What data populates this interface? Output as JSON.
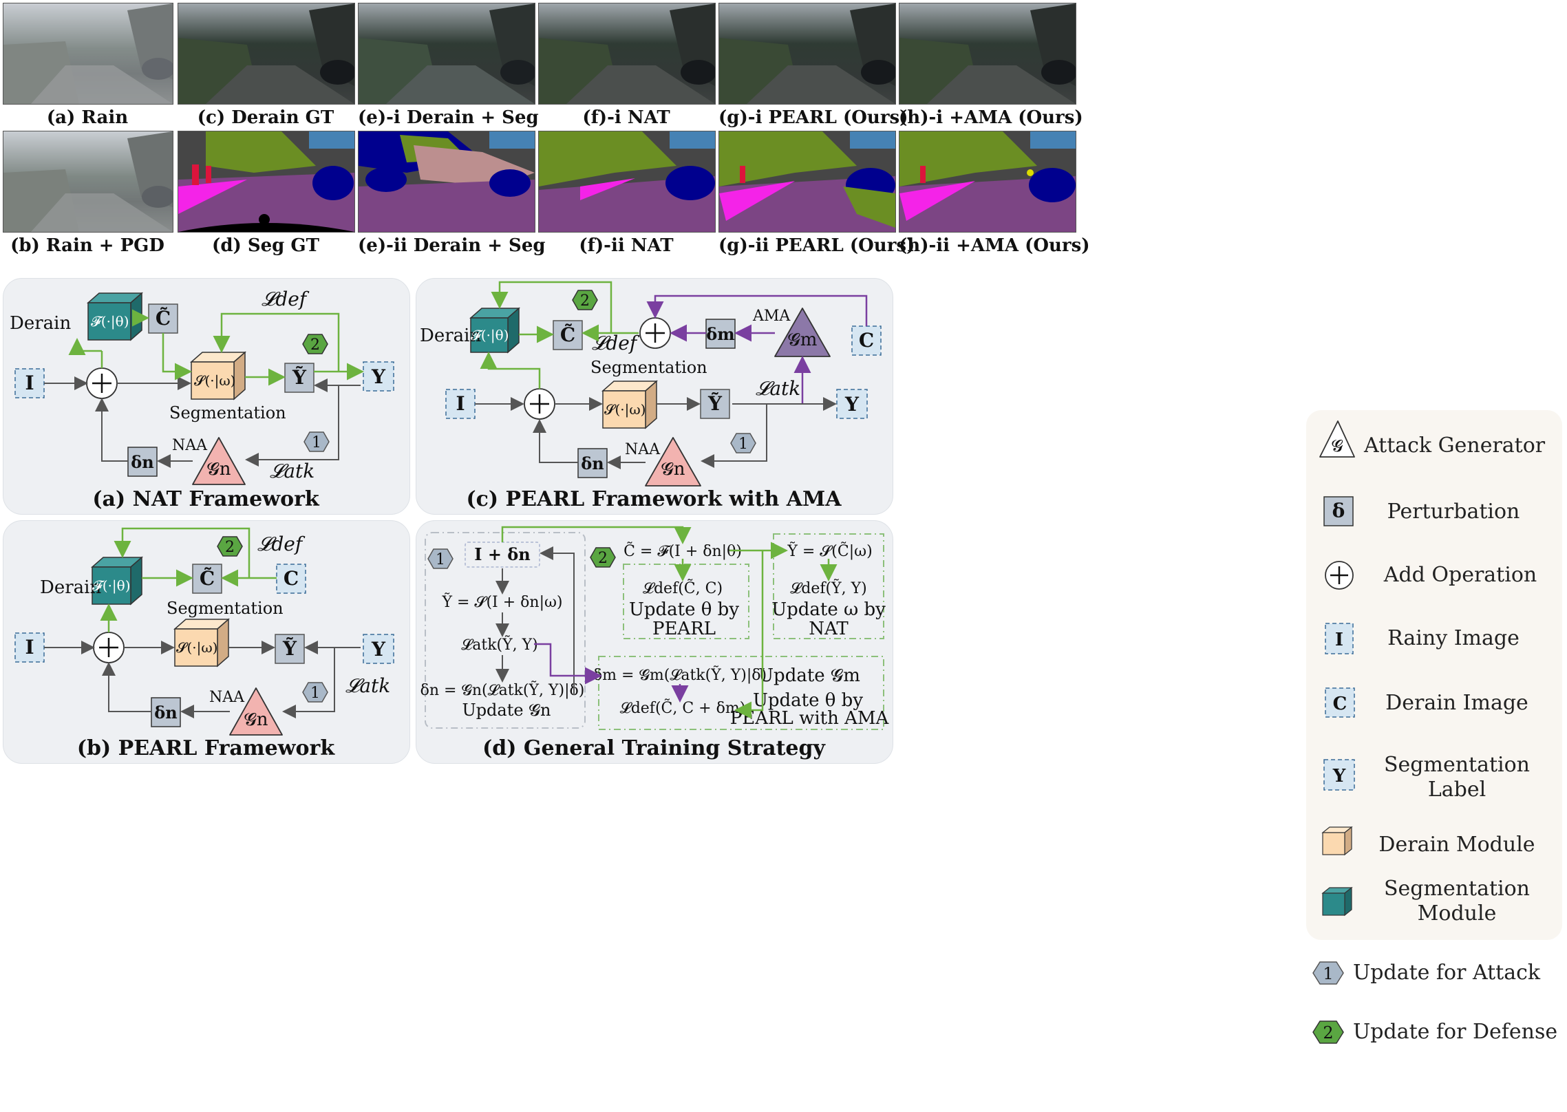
{
  "photo_captions": {
    "rain": "(a) Rain",
    "rain_pgd": "(b) Rain + PGD",
    "derain_gt": "(c) Derain GT",
    "seg_gt": "(d) Seg GT",
    "e_i": "(e)-i Derain + Seg",
    "e_ii": "(e)-ii Derain + Seg",
    "f_i": "(f)-i NAT",
    "f_ii": "(f)-ii NAT",
    "g_i": "(g)-i PEARL (Ours)",
    "g_ii": "(g)-ii PEARL (Ours)",
    "h_i": "(h)-i +AMA (Ours)",
    "h_ii": "(h)-ii +AMA (Ours)"
  },
  "panels": {
    "a_title": "(a) NAT Framework",
    "b_title": "(b) PEARL Framework",
    "c_title": "(c) PEARL Framework with AMA",
    "d_title": "(d) General Training Strategy"
  },
  "nodes": {
    "derain": "Derain",
    "derain_fn": "𝓕(·|θ)",
    "seg_fn": "𝓢(·|ω)",
    "segmentation": "Segmentation",
    "c_tilde": "C̃",
    "y_tilde": "Ỹ",
    "y": "Y",
    "i": "I",
    "c": "C",
    "delta_n": "δn",
    "delta_m": "δm",
    "g_n": "𝓖n",
    "g_m": "𝓖m",
    "naa": "NAA",
    "ama": "AMA",
    "l_def": "𝓛def",
    "l_atk": "𝓛atk",
    "badge1": "1",
    "badge2": "2"
  },
  "strategy": {
    "input": "I + δn",
    "eq_y": "Ỹ = 𝓢(I + δn|ω)",
    "eq_latk": "𝓛atk(Ỹ, Y)",
    "eq_dn": "δn = 𝓖n(𝓛atk(Ỹ, Y)|δ)",
    "upd_gn": "Update 𝓖n",
    "eq_c": "C̃ = 𝓕(I + δn|θ)",
    "eq_ldef_c": "𝓛def(C̃, C)",
    "upd_theta_1": "Update θ by",
    "upd_theta_2": "PEARL",
    "eq_y2": "Ỹ = 𝓢(C̃|ω)",
    "eq_ldef_y": "𝓛def(Ỹ, Y)",
    "upd_omega_1": "Update ω by",
    "upd_omega_2": "NAT",
    "eq_dm": "δm = 𝓖m(𝓛atk(Ỹ, Y)|δ)",
    "upd_gm": "Update 𝓖m",
    "eq_ldef_cm": "𝓛def(C̃, C + δm)",
    "upd_ama_1": "Update θ by",
    "upd_ama_2": "PEARL with AMA"
  },
  "legend": {
    "attack_generator": "Attack Generator",
    "perturbation": "Perturbation",
    "add_operation": "Add Operation",
    "rainy_image": "Rainy Image",
    "derain_image": "Derain Image",
    "segmentation_label_1": "Segmentation",
    "segmentation_label_2": "Label",
    "derain_module": "Derain Module",
    "segmentation_module_1": "Segmentation",
    "segmentation_module_2": "Module",
    "update_attack": "Update for Attack",
    "update_defense": "Update for Defense",
    "g_symbol": "𝓖",
    "delta_symbol": "δ",
    "i_symbol": "I",
    "c_symbol": "C",
    "y_symbol": "Y",
    "badge1": "1",
    "badge2": "2"
  },
  "colors": {
    "green_arrow": "#6db33f",
    "purple_arrow": "#7a3fa0",
    "dark_arrow": "#555555",
    "derain_box": "#2c8a8a",
    "seg_box": "#fbd9b0",
    "node_box": "#bcc6d2",
    "dashed_box": "#d6e6f2",
    "generator_n": "#f2b3b0",
    "generator_m": "#8c78a8",
    "badge1": "#a9b8c8",
    "badge2": "#5aa642"
  }
}
